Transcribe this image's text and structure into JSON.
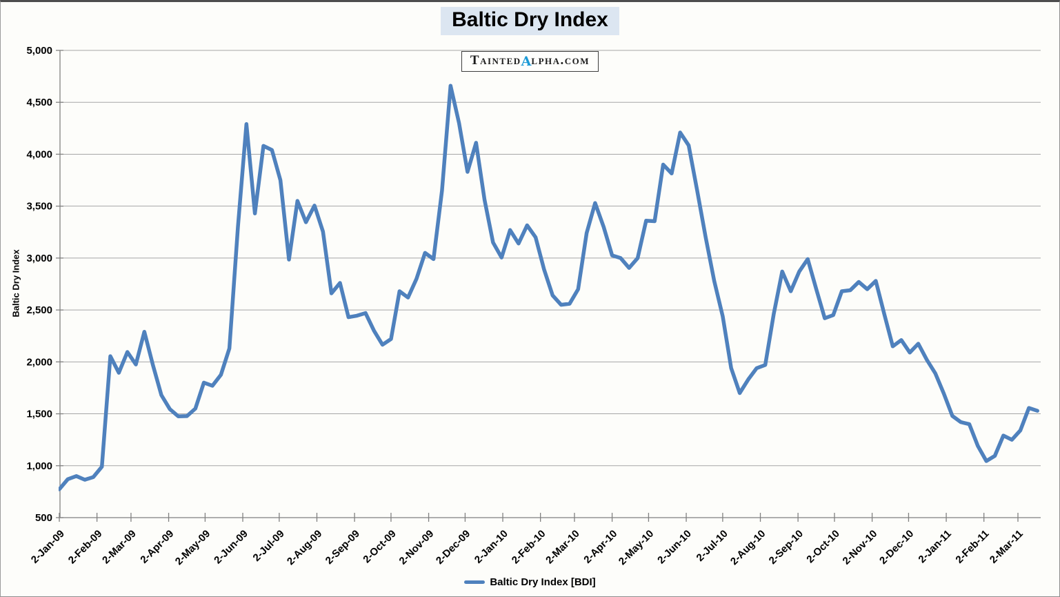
{
  "title": "Baltic Dry Index",
  "watermark": {
    "pre": "Tainted",
    "alpha": "α",
    "post": "lpha.com"
  },
  "y_axis_title": "Baltic Dry Index",
  "legend": {
    "label": "Baltic Dry Index [BDI]"
  },
  "colors": {
    "line": "#4F81BD",
    "gridline": "#a6a6a6",
    "axis": "#808080",
    "title_highlight": "#dce6f1",
    "watermark_alpha": "#1c9ad6",
    "text": "#000000"
  },
  "chart_data": {
    "type": "line",
    "title": "Baltic Dry Index",
    "ylabel": "Baltic Dry Index",
    "legend_entry": "Baltic Dry Index [BDI]",
    "frequency": "weekly",
    "ylim": [
      500,
      5000
    ],
    "grid": "horizontal-only",
    "legend_position": "bottom-center",
    "y_tick_labels": [
      "500",
      "1,000",
      "1,500",
      "2,000",
      "2,500",
      "3,000",
      "3,500",
      "4,000",
      "4,500",
      "5,000"
    ],
    "x_ticks": [
      {
        "label": "2-Jan-09",
        "day": 0
      },
      {
        "label": "2-Feb-09",
        "day": 31
      },
      {
        "label": "2-Mar-09",
        "day": 59
      },
      {
        "label": "2-Apr-09",
        "day": 90
      },
      {
        "label": "2-May-09",
        "day": 120
      },
      {
        "label": "2-Jun-09",
        "day": 151
      },
      {
        "label": "2-Jul-09",
        "day": 181
      },
      {
        "label": "2-Aug-09",
        "day": 212
      },
      {
        "label": "2-Sep-09",
        "day": 243
      },
      {
        "label": "2-Oct-09",
        "day": 273
      },
      {
        "label": "2-Nov-09",
        "day": 304
      },
      {
        "label": "2-Dec-09",
        "day": 334
      },
      {
        "label": "2-Jan-10",
        "day": 365
      },
      {
        "label": "2-Feb-10",
        "day": 396
      },
      {
        "label": "2-Mar-10",
        "day": 424
      },
      {
        "label": "2-Apr-10",
        "day": 455
      },
      {
        "label": "2-May-10",
        "day": 485
      },
      {
        "label": "2-Jun-10",
        "day": 516
      },
      {
        "label": "2-Jul-10",
        "day": 546
      },
      {
        "label": "2-Aug-10",
        "day": 577
      },
      {
        "label": "2-Sep-10",
        "day": 608
      },
      {
        "label": "2-Oct-10",
        "day": 638
      },
      {
        "label": "2-Nov-10",
        "day": 669
      },
      {
        "label": "2-Dec-10",
        "day": 699
      },
      {
        "label": "2-Jan-11",
        "day": 730
      },
      {
        "label": "2-Feb-11",
        "day": 761
      },
      {
        "label": "2-Mar-11",
        "day": 789
      }
    ],
    "series_start": "2-Jan-09",
    "values": [
      773,
      870,
      900,
      865,
      890,
      990,
      2055,
      1895,
      2095,
      1975,
      2290,
      1970,
      1680,
      1545,
      1475,
      1478,
      1550,
      1800,
      1770,
      1875,
      2130,
      3300,
      4290,
      3430,
      4080,
      4040,
      3750,
      2985,
      3550,
      3345,
      3505,
      3255,
      2660,
      2760,
      2430,
      2445,
      2470,
      2300,
      2165,
      2220,
      2680,
      2620,
      2800,
      3050,
      2990,
      3650,
      4660,
      4300,
      3830,
      4110,
      3560,
      3150,
      3005,
      3270,
      3140,
      3315,
      3200,
      2890,
      2640,
      2550,
      2560,
      2700,
      3240,
      3530,
      3300,
      3025,
      3000,
      2905,
      3000,
      3360,
      3355,
      3900,
      3815,
      4209,
      4085,
      3650,
      3200,
      2780,
      2440,
      1940,
      1700,
      1830,
      1940,
      1970,
      2460,
      2870,
      2680,
      2870,
      2990,
      2700,
      2420,
      2450,
      2680,
      2690,
      2770,
      2700,
      2780,
      2460,
      2150,
      2210,
      2090,
      2175,
      2020,
      1890,
      1695,
      1480,
      1420,
      1400,
      1190,
      1045,
      1095,
      1290,
      1250,
      1340,
      1556,
      1529
    ]
  }
}
